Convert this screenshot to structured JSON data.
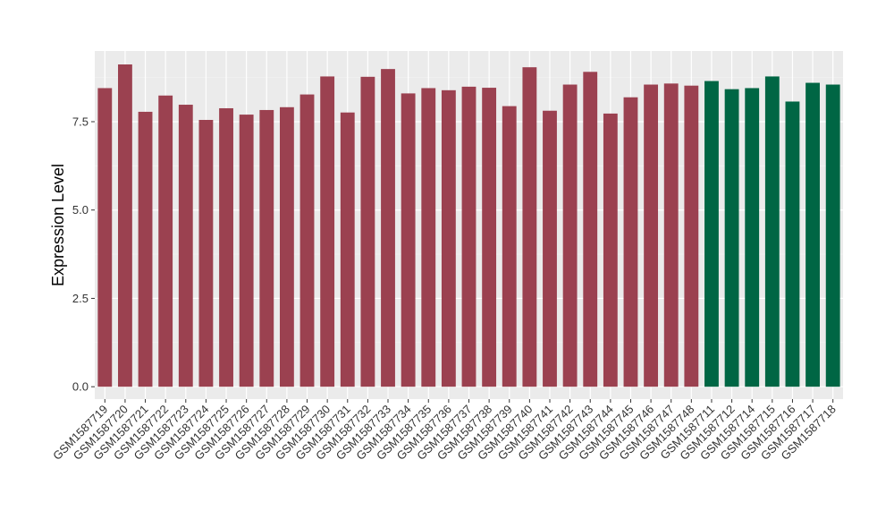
{
  "chart_data": {
    "type": "bar",
    "title": "",
    "xlabel": "",
    "ylabel": "Expression Level",
    "ylim": [
      -0.35,
      9.5
    ],
    "yticks": [
      "0.0",
      "2.5",
      "5.0",
      "7.5"
    ],
    "ytick_values": [
      0,
      2.5,
      5.0,
      7.5
    ],
    "grid": true,
    "legend": "none",
    "colors": {
      "group_1": "#9b4150",
      "group_2": "#006644",
      "panel_bg": "#ebebeb",
      "grid_major": "#ffffff"
    },
    "categories": [
      "GSM1587719",
      "GSM1587720",
      "GSM1587721",
      "GSM1587722",
      "GSM1587723",
      "GSM1587724",
      "GSM1587725",
      "GSM1587726",
      "GSM1587727",
      "GSM1587728",
      "GSM1587729",
      "GSM1587730",
      "GSM1587731",
      "GSM1587732",
      "GSM1587733",
      "GSM1587734",
      "GSM1587735",
      "GSM1587736",
      "GSM1587737",
      "GSM1587738",
      "GSM1587739",
      "GSM1587740",
      "GSM1587741",
      "GSM1587742",
      "GSM1587743",
      "GSM1587744",
      "GSM1587745",
      "GSM1587746",
      "GSM1587747",
      "GSM1587748",
      "GSM1587711",
      "GSM1587712",
      "GSM1587714",
      "GSM1587715",
      "GSM1587716",
      "GSM1587717",
      "GSM1587718"
    ],
    "values": [
      8.45,
      9.12,
      7.78,
      8.24,
      7.98,
      7.55,
      7.88,
      7.7,
      7.83,
      7.91,
      8.27,
      8.78,
      7.76,
      8.77,
      8.99,
      8.3,
      8.45,
      8.39,
      8.49,
      8.46,
      7.94,
      9.04,
      7.81,
      8.55,
      8.91,
      7.73,
      8.19,
      8.55,
      8.58,
      8.52,
      8.65,
      8.42,
      8.45,
      8.78,
      8.07,
      8.6,
      8.55
    ],
    "groups": [
      "group_1",
      "group_1",
      "group_1",
      "group_1",
      "group_1",
      "group_1",
      "group_1",
      "group_1",
      "group_1",
      "group_1",
      "group_1",
      "group_1",
      "group_1",
      "group_1",
      "group_1",
      "group_1",
      "group_1",
      "group_1",
      "group_1",
      "group_1",
      "group_1",
      "group_1",
      "group_1",
      "group_1",
      "group_1",
      "group_1",
      "group_1",
      "group_1",
      "group_1",
      "group_1",
      "group_2",
      "group_2",
      "group_2",
      "group_2",
      "group_2",
      "group_2",
      "group_2"
    ]
  }
}
